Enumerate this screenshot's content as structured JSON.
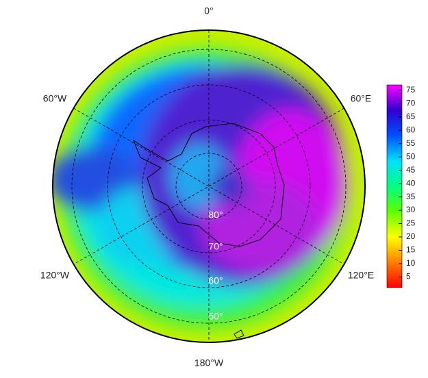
{
  "map": {
    "meridian_labels": {
      "top": "0°",
      "upper_right": "60°E",
      "lower_right": "120°E",
      "bottom": "180°W",
      "lower_left": "120°W",
      "upper_left": "60°W"
    },
    "latitude_labels": [
      "80°",
      "70°",
      "60°",
      "50°"
    ]
  },
  "colorbar": {
    "range": [
      1,
      77
    ],
    "ticks": [
      5,
      10,
      15,
      20,
      25,
      30,
      35,
      40,
      45,
      50,
      55,
      60,
      65,
      70,
      75
    ],
    "colors": [
      "#ff0000",
      "#ff8000",
      "#ffff00",
      "#60ff00",
      "#00ff80",
      "#00e0ff",
      "#0050ff",
      "#3000d0",
      "#ff00ff"
    ]
  }
}
